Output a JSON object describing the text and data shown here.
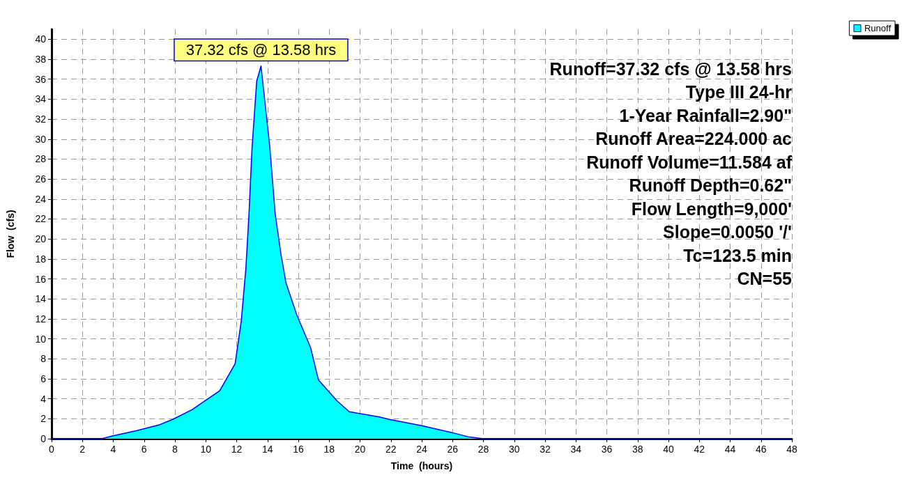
{
  "chart_data": {
    "type": "area",
    "xlabel": "Time  (hours)",
    "ylabel": "Flow  (cfs)",
    "x": [
      0,
      2,
      3.25,
      4,
      5.5,
      7,
      7.8,
      9.1,
      10.9,
      11.9,
      12.3,
      12.6,
      12.8,
      13.0,
      13.3,
      13.58,
      14.15,
      14.5,
      14.87,
      15.2,
      15.9,
      16.8,
      17.3,
      18.5,
      19.3,
      21.2,
      22,
      24,
      26,
      27,
      28,
      30,
      36,
      42,
      48
    ],
    "series": [
      {
        "name": "Runoff",
        "color": "#00ffff",
        "values": [
          0,
          0,
          0,
          0.3,
          0.8,
          1.4,
          1.9,
          2.9,
          4.8,
          7.5,
          11.8,
          17.1,
          22.5,
          29.2,
          35.8,
          37.32,
          29.2,
          22.5,
          18.5,
          15.6,
          12.4,
          9.1,
          5.9,
          3.8,
          2.7,
          2.2,
          1.9,
          1.3,
          0.6,
          0.2,
          0,
          0,
          0,
          0,
          0
        ]
      }
    ],
    "xlim": [
      0,
      48
    ],
    "xticks": [
      0,
      2,
      4,
      6,
      8,
      10,
      12,
      14,
      16,
      18,
      20,
      22,
      24,
      26,
      28,
      30,
      32,
      34,
      36,
      38,
      40,
      42,
      44,
      46,
      48
    ],
    "ylim": [
      0,
      41
    ],
    "yticks": [
      0,
      2,
      4,
      6,
      8,
      10,
      12,
      14,
      16,
      18,
      20,
      22,
      24,
      26,
      28,
      30,
      32,
      34,
      36,
      38,
      40
    ],
    "grid": true,
    "legend": "top right",
    "marker": "none",
    "line_style": "solid",
    "annotations": [
      {
        "text": "37.32 cfs @ 13.58 hrs",
        "x": 13.58,
        "y": 37.32
      },
      "Runoff=37.32 cfs @ 13.58 hrs",
      "Type III 24-hr",
      "1-Year Rainfall=2.90\"",
      "Runoff Area=224.000 ac",
      "Runoff Volume=11.584 af",
      "Runoff Depth=0.62\"",
      "Flow Length=9,000'",
      "Slope=0.0050 '/'",
      "Tc=123.5 min",
      "CN=55"
    ]
  }
}
